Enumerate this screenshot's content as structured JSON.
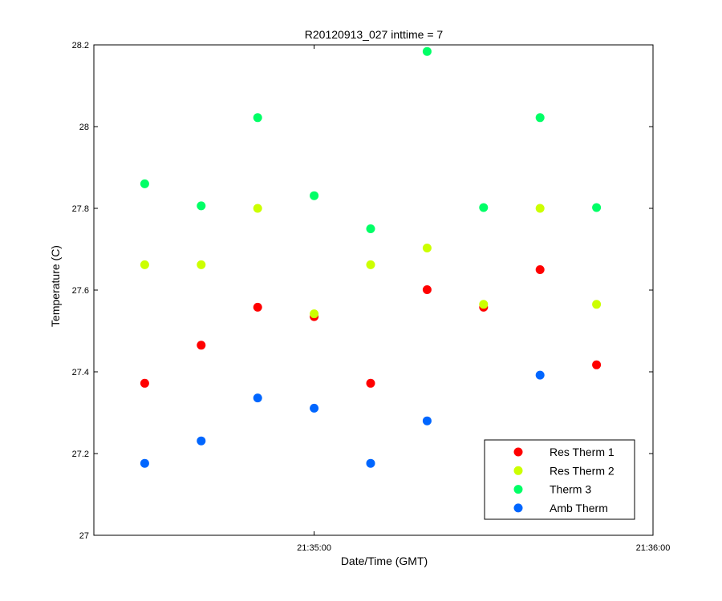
{
  "chart_data": {
    "type": "scatter",
    "title": "R20120913_027 inttime = 7",
    "xlabel": "Date/Time (GMT)",
    "ylabel": "Temperature (C)",
    "xlim": [
      "21:34:21",
      "21:36:00"
    ],
    "ylim": [
      27,
      28.2
    ],
    "x_ticks": [
      "21:35:00",
      "21:36:00"
    ],
    "y_ticks": [
      "27",
      "27.2",
      "27.4",
      "27.6",
      "27.8",
      "28",
      "28.2"
    ],
    "x": [
      "21:34:30",
      "21:34:40",
      "21:34:50",
      "21:35:00",
      "21:35:10",
      "21:35:20",
      "21:35:30",
      "21:35:40",
      "21:35:50"
    ],
    "legend_position": "bottom-right",
    "grid": false,
    "series": [
      {
        "name": "Res Therm 1",
        "color": "#ff0000",
        "values": [
          27.372,
          27.465,
          27.558,
          27.535,
          27.372,
          27.601,
          27.558,
          27.65,
          27.417
        ]
      },
      {
        "name": "Res Therm 2",
        "color": "#ccff00",
        "values": [
          27.662,
          27.662,
          27.8,
          27.542,
          27.662,
          27.703,
          27.565,
          27.8,
          27.565
        ]
      },
      {
        "name": "Therm 3",
        "color": "#00ff66",
        "values": [
          27.86,
          27.806,
          28.022,
          27.831,
          27.75,
          28.184,
          27.802,
          28.022,
          27.802
        ]
      },
      {
        "name": "Amb Therm",
        "color": "#0066ff",
        "values": [
          27.176,
          27.231,
          27.336,
          27.311,
          27.176,
          27.28,
          null,
          27.392,
          null
        ]
      }
    ]
  }
}
